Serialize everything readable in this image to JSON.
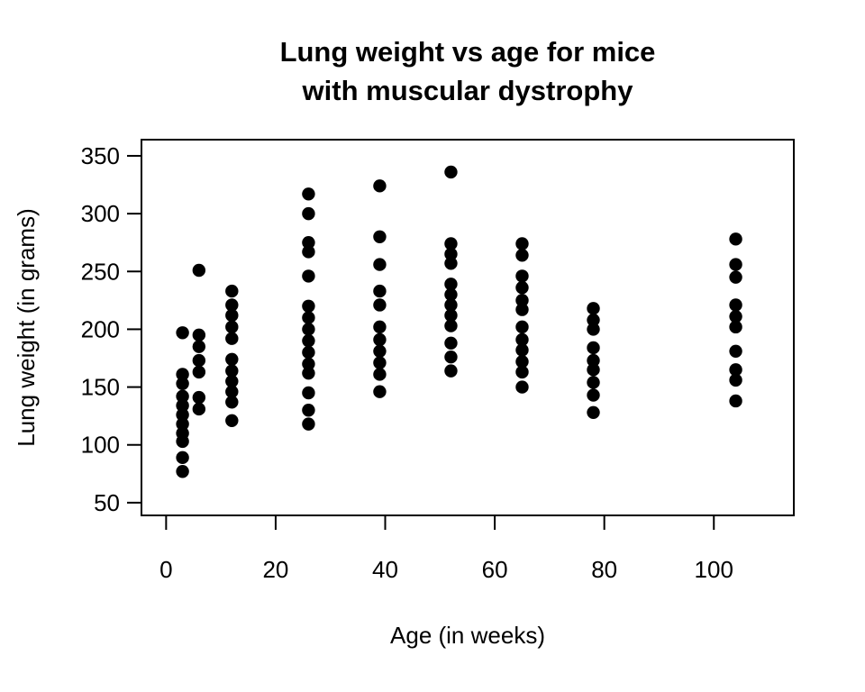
{
  "figure": {
    "title_line1": "Lung weight vs age for mice",
    "title_line2": "with muscular dystrophy",
    "xlabel": "Age (in weeks)",
    "ylabel": "Lung weight (in grams)"
  },
  "chart_data": {
    "type": "scatter",
    "title": "Lung weight vs age for mice with muscular dystrophy",
    "xlabel": "Age (in weeks)",
    "ylabel": "Lung weight (in grams)",
    "x_tick_labels": [
      0,
      20,
      40,
      60,
      80,
      100
    ],
    "y_tick_labels": [
      50,
      100,
      150,
      200,
      250,
      300,
      350
    ],
    "xlim": [
      -4.5,
      114.6
    ],
    "ylim": [
      39,
      364
    ],
    "grid": false,
    "legend": false,
    "marker": {
      "shape": "filled-circle",
      "color": "#000000"
    },
    "groups": [
      {
        "age_weeks": 3,
        "lung_weights": [
          197,
          161,
          153,
          142,
          134,
          126,
          118,
          110,
          103,
          89,
          77
        ]
      },
      {
        "age_weeks": 6,
        "lung_weights": [
          251,
          195,
          185,
          173,
          163,
          141,
          131
        ]
      },
      {
        "age_weeks": 12,
        "lung_weights": [
          233,
          221,
          212,
          202,
          192,
          174,
          164,
          155,
          146,
          137,
          121
        ]
      },
      {
        "age_weeks": 26,
        "lung_weights": [
          317,
          300,
          275,
          267,
          246,
          220,
          210,
          200,
          190,
          180,
          170,
          162,
          145,
          130,
          118
        ]
      },
      {
        "age_weeks": 39,
        "lung_weights": [
          324,
          280,
          256,
          233,
          221,
          202,
          191,
          181,
          171,
          161,
          146
        ]
      },
      {
        "age_weeks": 52,
        "lung_weights": [
          336,
          274,
          265,
          257,
          239,
          230,
          221,
          212,
          203,
          188,
          176,
          164
        ]
      },
      {
        "age_weeks": 65,
        "lung_weights": [
          274,
          264,
          246,
          236,
          225,
          217,
          202,
          191,
          182,
          172,
          163,
          150
        ]
      },
      {
        "age_weeks": 78,
        "lung_weights": [
          218,
          208,
          200,
          184,
          173,
          165,
          154,
          143,
          128
        ]
      },
      {
        "age_weeks": 104,
        "lung_weights": [
          278,
          256,
          245,
          221,
          211,
          202,
          181,
          165,
          156,
          138
        ]
      }
    ]
  }
}
